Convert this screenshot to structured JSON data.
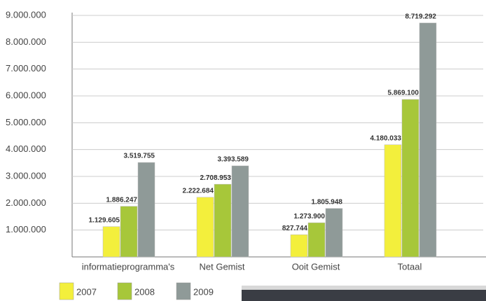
{
  "chart_data": {
    "type": "bar",
    "categories": [
      "informatieprogramma's",
      "Net Gemist",
      "Ooit Gemist",
      "Totaal"
    ],
    "series": [
      {
        "name": "2007",
        "color": "#f3ef3c",
        "values": [
          1129605,
          2222684,
          827744,
          4180033
        ],
        "value_labels": [
          "1.129.605",
          "2.222.684",
          "827.744",
          "4.180.033"
        ]
      },
      {
        "name": "2008",
        "color": "#a7c73a",
        "values": [
          1886247,
          2708953,
          1273900,
          5869100
        ],
        "value_labels": [
          "1.886.247",
          "2.708.953",
          "1.273.900",
          "5.869.100"
        ]
      },
      {
        "name": "2009",
        "color": "#8f9a98",
        "values": [
          3519755,
          3393589,
          1805948,
          8719292
        ],
        "value_labels": [
          "3.519.755",
          "3.393.589",
          "1.805.948",
          "8.719.292"
        ]
      }
    ],
    "ylim": [
      0,
      9000000
    ],
    "yticks": [
      {
        "value": 1000000,
        "label": "1.000.000"
      },
      {
        "value": 2000000,
        "label": "2.000.000"
      },
      {
        "value": 3000000,
        "label": "3.000.000"
      },
      {
        "value": 4000000,
        "label": "4.000.000"
      },
      {
        "value": 5000000,
        "label": "5.000.000"
      },
      {
        "value": 6000000,
        "label": "6.000.000"
      },
      {
        "value": 7000000,
        "label": "7.000.000"
      },
      {
        "value": 8000000,
        "label": "8.000.000"
      },
      {
        "value": 9000000,
        "label": "9.000.000"
      }
    ],
    "grid": true
  }
}
